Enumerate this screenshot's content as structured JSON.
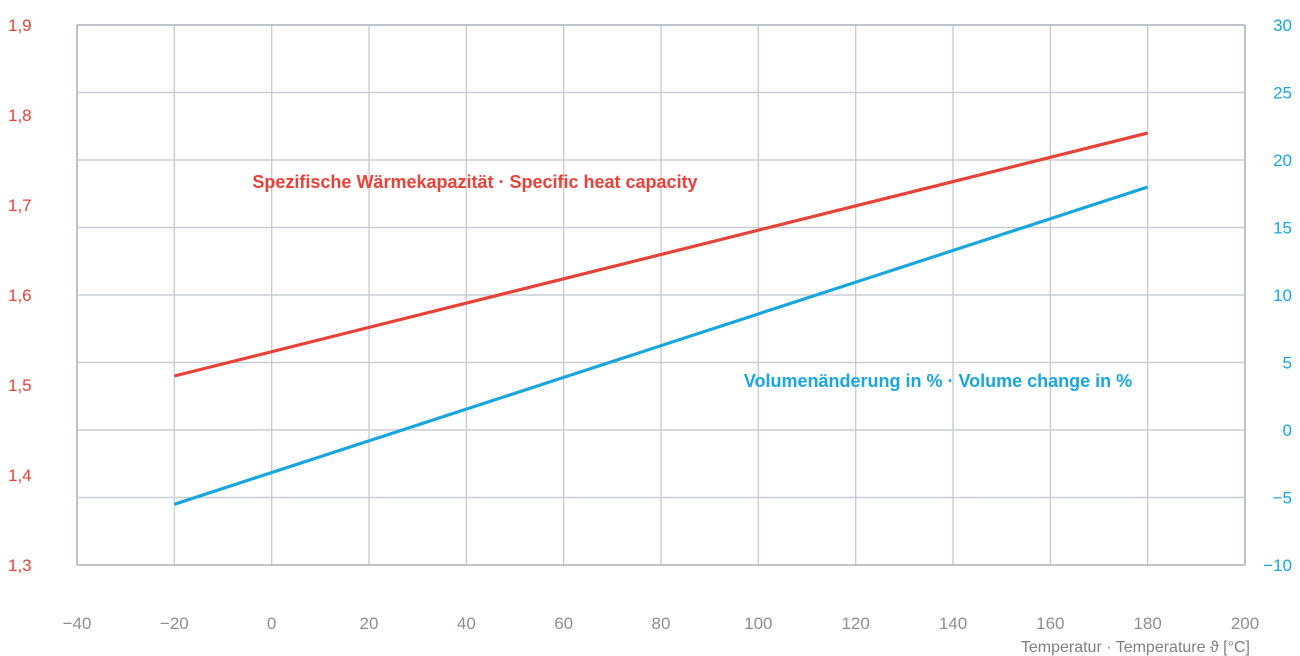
{
  "chart_data": {
    "type": "line",
    "xlabel": "Temperatur · Temperature ϑ [°C]",
    "xlim": [
      -40,
      200
    ],
    "x_ticks": [
      -40,
      -20,
      0,
      20,
      40,
      60,
      80,
      100,
      120,
      140,
      160,
      180,
      200
    ],
    "x_tick_labels": [
      "−40",
      "−20",
      "0",
      "20",
      "40",
      "60",
      "80",
      "100",
      "120",
      "140",
      "160",
      "180",
      "200"
    ],
    "y_left": {
      "ylim": [
        1.3,
        1.9
      ],
      "ticks": [
        1.3,
        1.4,
        1.5,
        1.6,
        1.7,
        1.8,
        1.9
      ],
      "tick_labels": [
        "1,3",
        "1,4",
        "1,5",
        "1,6",
        "1,7",
        "1,8",
        "1,9"
      ],
      "color": "#e8413a"
    },
    "y_right": {
      "ylim": [
        -10,
        30
      ],
      "ticks": [
        -10,
        -5,
        0,
        5,
        10,
        15,
        20,
        25,
        30
      ],
      "tick_labels": [
        "−10",
        "−5",
        "0",
        "5",
        "10",
        "15",
        "20",
        "25",
        "30"
      ],
      "color": "#1aa6dd"
    },
    "grid": true,
    "series": [
      {
        "name": "Spezifische Wärmekapazität · Specific heat capacity",
        "axis": "left",
        "color": "#e8413a",
        "x": [
          -20,
          180
        ],
        "y": [
          1.51,
          1.78
        ]
      },
      {
        "name": "Volumenänderung in % · Volume change in %",
        "axis": "right",
        "color": "#1aa6dd",
        "x": [
          -20,
          180
        ],
        "y": [
          -5.5,
          18
        ]
      }
    ]
  }
}
